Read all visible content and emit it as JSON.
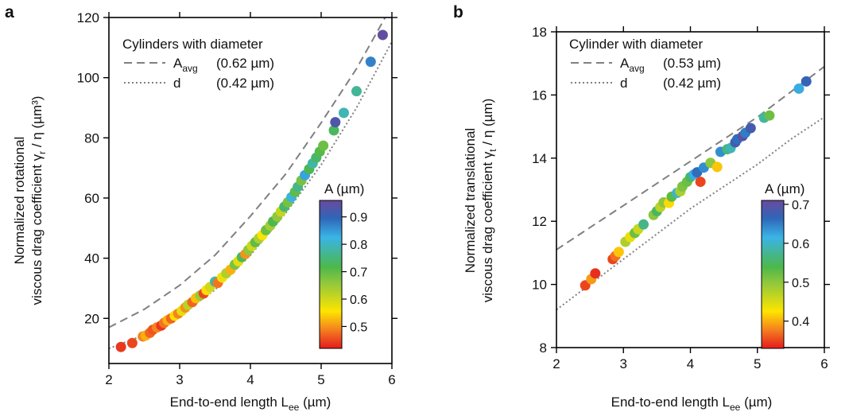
{
  "chart_data": [
    {
      "type": "scatter",
      "panel_label": "a",
      "xlabel": "End-to-end length L",
      "xlabel_sub": "ee",
      "xlabel_unit": " (µm)",
      "ylabel_line1": "Normalized rotational",
      "ylabel_line2_main": "viscous drag coefficient γ",
      "ylabel_line2_sub": "r",
      "ylabel_line2_rest": " / η (µm³)",
      "xlim": [
        2,
        6
      ],
      "ylim": [
        5,
        120
      ],
      "xticks": [
        2,
        3,
        4,
        5,
        6
      ],
      "yticks": [
        20,
        40,
        60,
        80,
        100,
        120
      ],
      "legend": {
        "title": "Cylinders with diameter",
        "entries": [
          {
            "main": "A",
            "sub": "avg",
            "value": "(0.62 µm)",
            "style": "dashed"
          },
          {
            "main": "d",
            "sub": "",
            "value": "(0.42 µm)",
            "style": "dotted"
          }
        ]
      },
      "curves": [
        {
          "style": "dashed",
          "x": [
            2.0,
            2.5,
            3.0,
            3.5,
            4.0,
            4.5,
            5.0,
            5.5,
            6.0
          ],
          "y": [
            17,
            23,
            31,
            41,
            54,
            68,
            85,
            103,
            124
          ]
        },
        {
          "style": "dotted",
          "x": [
            2.0,
            2.5,
            3.0,
            3.5,
            4.0,
            4.5,
            5.0,
            5.5,
            6.0
          ],
          "y": [
            10,
            14.5,
            21,
            29.5,
            41,
            55,
            71,
            90,
            112
          ]
        }
      ],
      "colorbar": {
        "title": "A (µm)",
        "min": 0.42,
        "max": 0.96,
        "ticks": [
          0.5,
          0.6,
          0.7,
          0.8,
          0.9
        ]
      },
      "points": [
        {
          "x": 2.17,
          "y": 10.5,
          "c": 0.44
        },
        {
          "x": 2.33,
          "y": 11.8,
          "c": 0.45
        },
        {
          "x": 2.48,
          "y": 14.0,
          "c": 0.49
        },
        {
          "x": 2.52,
          "y": 14.3,
          "c": 0.52
        },
        {
          "x": 2.58,
          "y": 15.2,
          "c": 0.47
        },
        {
          "x": 2.62,
          "y": 16.2,
          "c": 0.46
        },
        {
          "x": 2.68,
          "y": 17.0,
          "c": 0.49
        },
        {
          "x": 2.74,
          "y": 17.6,
          "c": 0.44
        },
        {
          "x": 2.78,
          "y": 18.5,
          "c": 0.48
        },
        {
          "x": 2.83,
          "y": 19.4,
          "c": 0.52
        },
        {
          "x": 2.88,
          "y": 20.0,
          "c": 0.47
        },
        {
          "x": 2.93,
          "y": 20.9,
          "c": 0.55
        },
        {
          "x": 2.98,
          "y": 21.6,
          "c": 0.49
        },
        {
          "x": 3.03,
          "y": 22.5,
          "c": 0.58
        },
        {
          "x": 3.08,
          "y": 23.6,
          "c": 0.5
        },
        {
          "x": 3.12,
          "y": 24.5,
          "c": 0.62
        },
        {
          "x": 3.18,
          "y": 25.4,
          "c": 0.47
        },
        {
          "x": 3.23,
          "y": 26.7,
          "c": 0.53
        },
        {
          "x": 3.29,
          "y": 27.6,
          "c": 0.65
        },
        {
          "x": 3.34,
          "y": 28.3,
          "c": 0.45
        },
        {
          "x": 3.38,
          "y": 29.4,
          "c": 0.55
        },
        {
          "x": 3.43,
          "y": 30.4,
          "c": 0.6
        },
        {
          "x": 3.5,
          "y": 32.2,
          "c": 0.78
        },
        {
          "x": 3.54,
          "y": 31.8,
          "c": 0.48
        },
        {
          "x": 3.6,
          "y": 33.6,
          "c": 0.57
        },
        {
          "x": 3.66,
          "y": 35.0,
          "c": 0.63
        },
        {
          "x": 3.72,
          "y": 36.2,
          "c": 0.52
        },
        {
          "x": 3.78,
          "y": 37.9,
          "c": 0.68
        },
        {
          "x": 3.83,
          "y": 39.0,
          "c": 0.58
        },
        {
          "x": 3.88,
          "y": 40.4,
          "c": 0.73
        },
        {
          "x": 3.93,
          "y": 41.4,
          "c": 0.5
        },
        {
          "x": 3.97,
          "y": 42.7,
          "c": 0.66
        },
        {
          "x": 4.02,
          "y": 44.1,
          "c": 0.6
        },
        {
          "x": 4.07,
          "y": 45.3,
          "c": 0.7
        },
        {
          "x": 4.12,
          "y": 46.6,
          "c": 0.63
        },
        {
          "x": 4.17,
          "y": 47.7,
          "c": 0.56
        },
        {
          "x": 4.22,
          "y": 49.3,
          "c": 0.69
        },
        {
          "x": 4.28,
          "y": 50.8,
          "c": 0.64
        },
        {
          "x": 4.32,
          "y": 52.2,
          "c": 0.72
        },
        {
          "x": 4.38,
          "y": 53.8,
          "c": 0.66
        },
        {
          "x": 4.43,
          "y": 55.5,
          "c": 0.61
        },
        {
          "x": 4.48,
          "y": 57.1,
          "c": 0.74
        },
        {
          "x": 4.53,
          "y": 58.6,
          "c": 0.68
        },
        {
          "x": 4.58,
          "y": 60.3,
          "c": 0.82
        },
        {
          "x": 4.63,
          "y": 62.0,
          "c": 0.7
        },
        {
          "x": 4.67,
          "y": 63.7,
          "c": 0.76
        },
        {
          "x": 4.72,
          "y": 65.8,
          "c": 0.68
        },
        {
          "x": 4.77,
          "y": 67.6,
          "c": 0.84
        },
        {
          "x": 4.83,
          "y": 69.6,
          "c": 0.72
        },
        {
          "x": 4.88,
          "y": 71.5,
          "c": 0.78
        },
        {
          "x": 4.93,
          "y": 73.4,
          "c": 0.74
        },
        {
          "x": 4.98,
          "y": 75.4,
          "c": 0.71
        },
        {
          "x": 5.03,
          "y": 77.4,
          "c": 0.69
        },
        {
          "x": 5.18,
          "y": 82.5,
          "c": 0.73
        },
        {
          "x": 5.2,
          "y": 85.2,
          "c": 0.93
        },
        {
          "x": 5.32,
          "y": 88.3,
          "c": 0.79
        },
        {
          "x": 5.5,
          "y": 95.5,
          "c": 0.77
        },
        {
          "x": 5.7,
          "y": 105.3,
          "c": 0.87
        },
        {
          "x": 5.87,
          "y": 114.2,
          "c": 0.95
        }
      ]
    },
    {
      "type": "scatter",
      "panel_label": "b",
      "xlabel": "End-to-end length L",
      "xlabel_sub": "ee",
      "xlabel_unit": " (µm)",
      "ylabel_line1": "Normalized translational",
      "ylabel_line2_main": "viscous drag coefficient γ",
      "ylabel_line2_sub": "t",
      "ylabel_line2_rest": " / η (µm)",
      "xlim": [
        2,
        6
      ],
      "ylim": [
        8,
        18
      ],
      "xticks": [
        2,
        3,
        4,
        5,
        6
      ],
      "yticks": [
        8,
        10,
        12,
        14,
        16,
        18
      ],
      "legend": {
        "title": "Cylinder with diameter",
        "entries": [
          {
            "main": "A",
            "sub": "avg",
            "value": "(0.53 µm)",
            "style": "dashed"
          },
          {
            "main": "d",
            "sub": "",
            "value": "(0.42 µm)",
            "style": "dotted"
          }
        ]
      },
      "curves": [
        {
          "style": "dashed",
          "x": [
            2.0,
            2.5,
            3.0,
            3.5,
            4.0,
            4.5,
            5.0,
            5.5,
            6.0
          ],
          "y": [
            11.1,
            11.8,
            12.5,
            13.2,
            13.9,
            14.6,
            15.3,
            16.1,
            16.9
          ]
        },
        {
          "style": "dotted",
          "x": [
            2.0,
            2.5,
            3.0,
            3.5,
            4.0,
            4.5,
            5.0,
            5.5,
            6.0
          ],
          "y": [
            9.2,
            10.0,
            10.8,
            11.6,
            12.4,
            13.1,
            13.8,
            14.6,
            15.3
          ]
        }
      ],
      "colorbar": {
        "title": "A (µm)",
        "min": 0.33,
        "max": 0.71,
        "ticks": [
          0.4,
          0.5,
          0.6,
          0.7
        ]
      },
      "points": [
        {
          "x": 2.43,
          "y": 9.97,
          "c": 0.35
        },
        {
          "x": 2.52,
          "y": 10.17,
          "c": 0.39
        },
        {
          "x": 2.58,
          "y": 10.35,
          "c": 0.34
        },
        {
          "x": 2.84,
          "y": 10.8,
          "c": 0.35
        },
        {
          "x": 2.88,
          "y": 10.9,
          "c": 0.37
        },
        {
          "x": 2.93,
          "y": 11.03,
          "c": 0.41
        },
        {
          "x": 3.03,
          "y": 11.35,
          "c": 0.48
        },
        {
          "x": 3.1,
          "y": 11.5,
          "c": 0.44
        },
        {
          "x": 3.17,
          "y": 11.63,
          "c": 0.52
        },
        {
          "x": 3.22,
          "y": 11.75,
          "c": 0.46
        },
        {
          "x": 3.3,
          "y": 11.9,
          "c": 0.57
        },
        {
          "x": 3.45,
          "y": 12.2,
          "c": 0.5
        },
        {
          "x": 3.5,
          "y": 12.32,
          "c": 0.55
        },
        {
          "x": 3.55,
          "y": 12.45,
          "c": 0.47
        },
        {
          "x": 3.6,
          "y": 12.6,
          "c": 0.5
        },
        {
          "x": 3.68,
          "y": 12.58,
          "c": 0.42
        },
        {
          "x": 3.72,
          "y": 12.78,
          "c": 0.53
        },
        {
          "x": 3.8,
          "y": 12.9,
          "c": 0.6
        },
        {
          "x": 3.85,
          "y": 12.95,
          "c": 0.48
        },
        {
          "x": 3.88,
          "y": 13.1,
          "c": 0.51
        },
        {
          "x": 3.95,
          "y": 13.25,
          "c": 0.52
        },
        {
          "x": 4.0,
          "y": 13.4,
          "c": 0.55
        },
        {
          "x": 4.05,
          "y": 13.48,
          "c": 0.62
        },
        {
          "x": 4.1,
          "y": 13.55,
          "c": 0.66
        },
        {
          "x": 4.15,
          "y": 13.25,
          "c": 0.35
        },
        {
          "x": 4.2,
          "y": 13.7,
          "c": 0.64
        },
        {
          "x": 4.3,
          "y": 13.85,
          "c": 0.5
        },
        {
          "x": 4.4,
          "y": 13.72,
          "c": 0.41
        },
        {
          "x": 4.45,
          "y": 14.2,
          "c": 0.64
        },
        {
          "x": 4.55,
          "y": 14.28,
          "c": 0.56
        },
        {
          "x": 4.6,
          "y": 14.32,
          "c": 0.59
        },
        {
          "x": 4.67,
          "y": 14.5,
          "c": 0.68
        },
        {
          "x": 4.7,
          "y": 14.6,
          "c": 0.66
        },
        {
          "x": 4.78,
          "y": 14.7,
          "c": 0.7
        },
        {
          "x": 4.82,
          "y": 14.8,
          "c": 0.65
        },
        {
          "x": 4.9,
          "y": 14.95,
          "c": 0.68
        },
        {
          "x": 5.1,
          "y": 15.28,
          "c": 0.58
        },
        {
          "x": 5.18,
          "y": 15.35,
          "c": 0.52
        },
        {
          "x": 5.62,
          "y": 16.2,
          "c": 0.62
        },
        {
          "x": 5.73,
          "y": 16.43,
          "c": 0.67
        }
      ]
    }
  ]
}
